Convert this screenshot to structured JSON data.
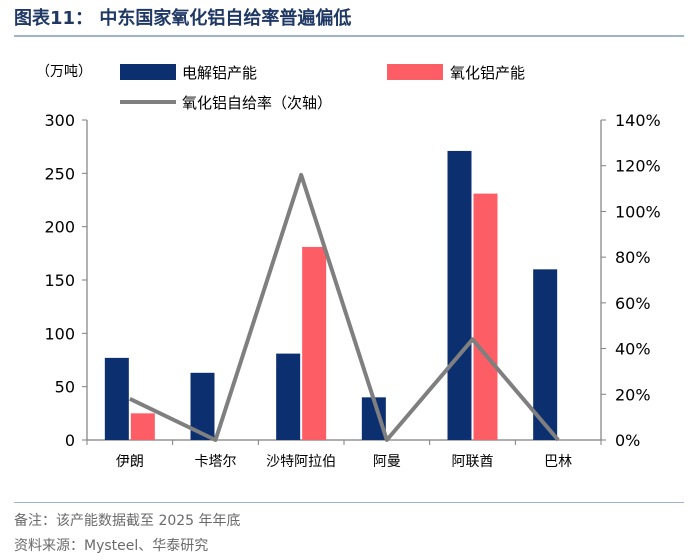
{
  "figure_title": "图表11：  中东国家氧化铝自给率普遍偏低",
  "notes": {
    "note": "备注：该产能数据截至 2025 年年底",
    "source": "资料来源：Mysteel、华泰研究"
  },
  "colors": {
    "navy": "#0c2f70",
    "coral": "#fd5d65",
    "gray": "#7f7f7f",
    "axis": "#7f7f7f",
    "title": "#1f3864"
  },
  "chart_data": {
    "type": "bar",
    "title": "中东国家氧化铝自给率普遍偏低",
    "unit_label": "（万吨）",
    "categories": [
      "伊朗",
      "卡塔尔",
      "沙特阿拉伯",
      "阿曼",
      "阿联酋",
      "巴林"
    ],
    "series": [
      {
        "name": "电解铝产能",
        "type": "bar",
        "axis": "left",
        "values": [
          77,
          63,
          81,
          40,
          271,
          160
        ]
      },
      {
        "name": "氧化铝产能",
        "type": "bar",
        "axis": "left",
        "values": [
          25,
          0,
          181,
          0,
          231,
          0
        ]
      },
      {
        "name": "氧化铝自给率（次轴）",
        "type": "line",
        "axis": "right",
        "values": [
          0.18,
          0.0,
          1.16,
          0.0,
          0.44,
          0.0
        ]
      }
    ],
    "left_axis": {
      "ylim": [
        0,
        300
      ],
      "ticks": [
        0,
        50,
        100,
        150,
        200,
        250,
        300
      ],
      "tick_labels": [
        "0",
        "50",
        "100",
        "150",
        "200",
        "250",
        "300"
      ]
    },
    "right_axis": {
      "ylim": [
        0,
        1.4
      ],
      "ticks": [
        0,
        0.2,
        0.4,
        0.6,
        0.8,
        1.0,
        1.2,
        1.4
      ],
      "tick_labels": [
        "0%",
        "20%",
        "40%",
        "60%",
        "80%",
        "100%",
        "120%",
        "140%"
      ]
    },
    "legend": [
      "电解铝产能",
      "氧化铝产能",
      "氧化铝自给率（次轴）"
    ],
    "grid": false
  }
}
